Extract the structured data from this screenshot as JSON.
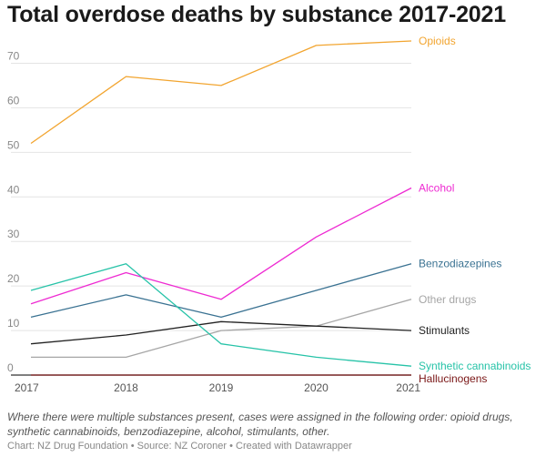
{
  "title": "Total overdose deaths by substance 2017-2021",
  "note": "Where there were multiple substances present, cases were assigned in the following order: opioid drugs, synthetic cannabinoids, benzodiazepine, alcohol, stimulants, other.",
  "credits": "Chart: NZ Drug Foundation • Source: NZ Coroner • Created with Datawrapper",
  "chart_data": {
    "type": "line",
    "title": "Total overdose deaths by substance 2017-2021",
    "xlabel": "",
    "ylabel": "",
    "x": [
      "2017",
      "2018",
      "2019",
      "2020",
      "2021"
    ],
    "ylim": [
      0,
      75
    ],
    "yticks": [
      0,
      10,
      20,
      30,
      40,
      50,
      60,
      70
    ],
    "grid": true,
    "legend": "direct labels at right end of lines",
    "series": [
      {
        "name": "Opioids",
        "color": "#f2a530",
        "values": [
          52,
          67,
          65,
          74,
          75
        ]
      },
      {
        "name": "Alcohol",
        "color": "#ee2ad2",
        "values": [
          16,
          23,
          17,
          31,
          42
        ]
      },
      {
        "name": "Benzodiazepines",
        "color": "#3a7292",
        "values": [
          13,
          18,
          13,
          19,
          25
        ]
      },
      {
        "name": "Other drugs",
        "color": "#a6a6a6",
        "values": [
          4,
          4,
          10,
          11,
          17
        ]
      },
      {
        "name": "Stimulants",
        "color": "#222222",
        "values": [
          7,
          9,
          12,
          11,
          10
        ]
      },
      {
        "name": "Synthetic cannabinoids",
        "color": "#27c3a8",
        "values": [
          19,
          25,
          7,
          4,
          2
        ]
      },
      {
        "name": "Hallucinogens",
        "color": "#7a1616",
        "values": [
          0,
          0,
          0,
          0,
          0
        ]
      }
    ]
  }
}
